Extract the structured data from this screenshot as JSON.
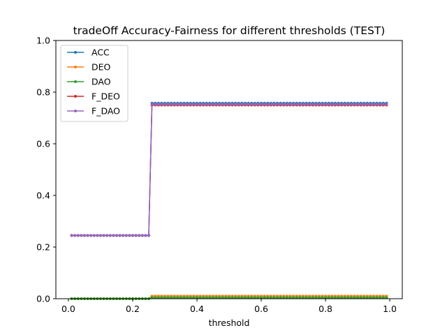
{
  "chart_data": {
    "type": "line",
    "title": "tradeOff Accuracy-Fairness for different thresholds (TEST)",
    "xlabel": "threshold",
    "ylabel": "",
    "xlim": [
      -0.039,
      1.039
    ],
    "ylim": [
      0.0,
      1.0
    ],
    "x_ticks": [
      0.0,
      0.2,
      0.4,
      0.6,
      0.8,
      1.0
    ],
    "x_tick_labels": [
      "0.0",
      "0.2",
      "0.4",
      "0.6",
      "0.8",
      "1.0"
    ],
    "y_ticks": [
      0.0,
      0.2,
      0.4,
      0.6,
      0.8,
      1.0
    ],
    "y_tick_labels": [
      "0.0",
      "0.2",
      "0.4",
      "0.6",
      "0.8",
      "1.0"
    ],
    "grid": false,
    "legend_position": "upper left",
    "x": {
      "start": 0.01,
      "stop": 0.99,
      "step": 0.01
    },
    "series": [
      {
        "name": "ACC",
        "color": "#1f77b4",
        "marker": "circle",
        "segments": [
          {
            "x_from": 0.01,
            "x_to": 0.25,
            "y": 0.245
          },
          {
            "x_from": 0.26,
            "x_to": 0.99,
            "y": 0.757
          }
        ]
      },
      {
        "name": "DEO",
        "color": "#ff7f0e",
        "marker": "circle",
        "segments": [
          {
            "x_from": 0.01,
            "x_to": 0.25,
            "y": 0.0
          },
          {
            "x_from": 0.26,
            "x_to": 0.99,
            "y": 0.01
          }
        ]
      },
      {
        "name": "DAO",
        "color": "#2ca02c",
        "marker": "circle",
        "segments": [
          {
            "x_from": 0.01,
            "x_to": 0.25,
            "y": 0.0
          },
          {
            "x_from": 0.26,
            "x_to": 0.99,
            "y": 0.004
          }
        ]
      },
      {
        "name": "F_DEO",
        "color": "#d62728",
        "marker": "circle",
        "segments": [
          {
            "x_from": 0.01,
            "x_to": 0.25,
            "y": 0.245
          },
          {
            "x_from": 0.26,
            "x_to": 0.99,
            "y": 0.75
          }
        ]
      },
      {
        "name": "F_DAO",
        "color": "#9467bd",
        "marker": "circle",
        "segments": [
          {
            "x_from": 0.01,
            "x_to": 0.25,
            "y": 0.245
          },
          {
            "x_from": 0.26,
            "x_to": 0.99,
            "y": 0.753
          }
        ]
      }
    ]
  }
}
